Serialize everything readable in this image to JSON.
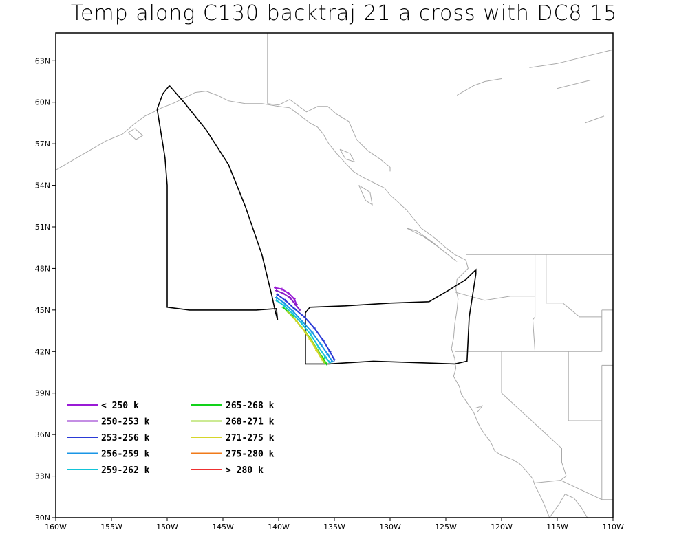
{
  "title": "Temp along C130 backtraj 21 a cross with DC8 15",
  "colors": {
    "frame": "#000000",
    "coast": "#aaaaaa",
    "flight_track": "#000000"
  },
  "chart_data": {
    "type": "map-trajectory",
    "xlim": [
      -160,
      -110
    ],
    "ylim": [
      30,
      65
    ],
    "x_ticks": [
      {
        "value": -160,
        "label": "160W"
      },
      {
        "value": -155,
        "label": "155W"
      },
      {
        "value": -150,
        "label": "150W"
      },
      {
        "value": -145,
        "label": "145W"
      },
      {
        "value": -140,
        "label": "140W"
      },
      {
        "value": -135,
        "label": "135W"
      },
      {
        "value": -130,
        "label": "130W"
      },
      {
        "value": -125,
        "label": "125W"
      },
      {
        "value": -120,
        "label": "120W"
      },
      {
        "value": -115,
        "label": "115W"
      },
      {
        "value": -110,
        "label": "110W"
      }
    ],
    "y_ticks": [
      {
        "value": 30,
        "label": "30N"
      },
      {
        "value": 33,
        "label": "33N"
      },
      {
        "value": 36,
        "label": "36N"
      },
      {
        "value": 39,
        "label": "39N"
      },
      {
        "value": 42,
        "label": "42N"
      },
      {
        "value": 45,
        "label": "45N"
      },
      {
        "value": 48,
        "label": "48N"
      },
      {
        "value": 51,
        "label": "51N"
      },
      {
        "value": 54,
        "label": "54N"
      },
      {
        "value": 57,
        "label": "57N"
      },
      {
        "value": 60,
        "label": "60N"
      },
      {
        "value": 63,
        "label": "63N"
      }
    ],
    "legend": [
      {
        "label": "< 250 k",
        "color": "#9a1ad6"
      },
      {
        "label": "250-253 k",
        "color": "#8a1ec8"
      },
      {
        "label": "253-256 k",
        "color": "#2a3ad6"
      },
      {
        "label": "256-259 k",
        "color": "#1a96e6"
      },
      {
        "label": "259-262 k",
        "color": "#12c4d8"
      },
      {
        "label": "265-268 k",
        "color": "#12d21a"
      },
      {
        "label": "268-271 k",
        "color": "#9ad62a"
      },
      {
        "label": "271-275 k",
        "color": "#d6d62a"
      },
      {
        "label": "275-280 k",
        "color": "#f07a1a"
      },
      {
        "label": "> 280 k",
        "color": "#ee3030"
      }
    ],
    "flight_track": [
      [
        -149.8,
        61.2
      ],
      [
        -150.4,
        60.6
      ],
      [
        -150.9,
        59.5
      ],
      [
        -150.6,
        58.0
      ],
      [
        -150.2,
        56.0
      ],
      [
        -150.0,
        54.0
      ],
      [
        -150.0,
        51.0
      ],
      [
        -150.0,
        48.0
      ],
      [
        -150.0,
        45.2
      ],
      [
        -148.0,
        45.0
      ],
      [
        -145.0,
        45.0
      ],
      [
        -142.0,
        45.0
      ],
      [
        -140.2,
        45.1
      ],
      [
        -140.1,
        44.3
      ],
      [
        -140.3,
        44.9
      ],
      [
        -140.6,
        46.0
      ],
      [
        -141.5,
        49.0
      ],
      [
        -143.0,
        52.5
      ],
      [
        -144.5,
        55.5
      ],
      [
        -146.5,
        58.0
      ],
      [
        -148.5,
        60.0
      ],
      [
        -149.8,
        61.2
      ]
    ],
    "flight_track_2": [
      [
        -137.6,
        44.8
      ],
      [
        -137.2,
        45.2
      ],
      [
        -134.0,
        45.3
      ],
      [
        -130.0,
        45.5
      ],
      [
        -126.5,
        45.6
      ],
      [
        -124.8,
        46.4
      ],
      [
        -123.2,
        47.2
      ],
      [
        -122.3,
        47.9
      ],
      [
        -122.3,
        47.6
      ],
      [
        -122.9,
        44.5
      ],
      [
        -123.1,
        41.3
      ],
      [
        -124.2,
        41.1
      ],
      [
        -131.5,
        41.3
      ],
      [
        -135.5,
        41.1
      ],
      [
        -137.6,
        41.1
      ],
      [
        -137.6,
        44.8
      ]
    ],
    "trajectories": [
      {
        "color": "#9a1ad6",
        "points": [
          [
            -140.3,
            46.6
          ],
          [
            -139.7,
            46.5
          ],
          [
            -139.1,
            46.2
          ],
          [
            -138.6,
            45.8
          ],
          [
            -138.4,
            45.4
          ]
        ]
      },
      {
        "color": "#8a1ec8",
        "points": [
          [
            -140.2,
            46.4
          ],
          [
            -139.6,
            46.2
          ],
          [
            -139.0,
            45.9
          ],
          [
            -138.5,
            45.4
          ],
          [
            -138.1,
            45.0
          ]
        ]
      },
      {
        "color": "#2a3ad6",
        "points": [
          [
            -140.1,
            46.1
          ],
          [
            -139.4,
            45.7
          ],
          [
            -138.6,
            45.1
          ],
          [
            -137.7,
            44.5
          ],
          [
            -136.8,
            43.7
          ],
          [
            -136.0,
            42.8
          ],
          [
            -135.4,
            42.0
          ],
          [
            -135.0,
            41.4
          ]
        ]
      },
      {
        "color": "#1a96e6",
        "points": [
          [
            -140.2,
            45.9
          ],
          [
            -139.5,
            45.5
          ],
          [
            -138.7,
            44.9
          ],
          [
            -137.9,
            44.2
          ],
          [
            -137.0,
            43.4
          ],
          [
            -136.2,
            42.5
          ],
          [
            -135.6,
            41.8
          ],
          [
            -135.2,
            41.3
          ]
        ]
      },
      {
        "color": "#12c4d8",
        "points": [
          [
            -140.2,
            45.7
          ],
          [
            -139.5,
            45.3
          ],
          [
            -138.7,
            44.7
          ],
          [
            -137.9,
            44.0
          ],
          [
            -137.1,
            43.2
          ],
          [
            -136.4,
            42.3
          ],
          [
            -135.8,
            41.6
          ],
          [
            -135.4,
            41.2
          ]
        ]
      },
      {
        "color": "#12d21a",
        "points": [
          [
            -139.6,
            45.2
          ],
          [
            -138.8,
            44.6
          ],
          [
            -138.0,
            43.8
          ],
          [
            -137.2,
            43.0
          ],
          [
            -136.5,
            42.1
          ],
          [
            -136.0,
            41.5
          ],
          [
            -135.7,
            41.1
          ]
        ]
      },
      {
        "color": "#9ad62a",
        "points": [
          [
            -139.2,
            44.9
          ],
          [
            -138.4,
            44.2
          ],
          [
            -137.6,
            43.4
          ],
          [
            -136.9,
            42.6
          ],
          [
            -136.3,
            41.8
          ],
          [
            -135.9,
            41.2
          ]
        ]
      },
      {
        "color": "#d6d62a",
        "points": [
          [
            -138.6,
            44.4
          ],
          [
            -137.9,
            43.7
          ],
          [
            -137.2,
            42.9
          ],
          [
            -136.6,
            42.1
          ],
          [
            -136.1,
            41.4
          ]
        ]
      }
    ],
    "coastlines": [
      [
        [
          -160,
          55.1
        ],
        [
          -158.5,
          55.8
        ],
        [
          -157,
          56.5
        ],
        [
          -155.5,
          57.2
        ],
        [
          -154,
          57.7
        ],
        [
          -153,
          58.4
        ],
        [
          -152,
          59.0
        ],
        [
          -151.2,
          59.3
        ],
        [
          -150.5,
          59.6
        ],
        [
          -149.5,
          59.9
        ],
        [
          -148.5,
          60.3
        ],
        [
          -147.5,
          60.7
        ],
        [
          -146.5,
          60.8
        ],
        [
          -145.5,
          60.5
        ],
        [
          -144.5,
          60.1
        ],
        [
          -143,
          59.9
        ],
        [
          -141.5,
          59.9
        ],
        [
          -140,
          59.7
        ],
        [
          -139,
          59.6
        ],
        [
          -138,
          59.0
        ],
        [
          -137.2,
          58.5
        ],
        [
          -136.5,
          58.2
        ],
        [
          -136,
          57.7
        ],
        [
          -135.5,
          57.0
        ],
        [
          -134.8,
          56.3
        ],
        [
          -134,
          55.6
        ],
        [
          -133.3,
          55.0
        ],
        [
          -132.5,
          54.6
        ],
        [
          -131.5,
          54.2
        ],
        [
          -130.5,
          53.8
        ],
        [
          -130.0,
          53.3
        ],
        [
          -129.3,
          52.8
        ],
        [
          -128.5,
          52.2
        ],
        [
          -127.8,
          51.5
        ],
        [
          -127.2,
          50.9
        ],
        [
          -126.0,
          50.2
        ],
        [
          -125.0,
          49.5
        ],
        [
          -124.2,
          49.0
        ],
        [
          -123.2,
          48.6
        ],
        [
          -123.0,
          48.0
        ],
        [
          -123.5,
          47.6
        ],
        [
          -124.0,
          47.2
        ],
        [
          -124.1,
          46.5
        ],
        [
          -123.9,
          45.8
        ],
        [
          -124.0,
          45.0
        ],
        [
          -124.2,
          44.0
        ],
        [
          -124.3,
          43.0
        ],
        [
          -124.5,
          42.2
        ],
        [
          -124.2,
          41.5
        ],
        [
          -124.1,
          40.8
        ],
        [
          -124.3,
          40.2
        ],
        [
          -123.8,
          39.5
        ],
        [
          -123.6,
          38.9
        ],
        [
          -123.0,
          38.2
        ],
        [
          -122.5,
          37.6
        ],
        [
          -122.2,
          37.0
        ],
        [
          -121.9,
          36.5
        ],
        [
          -121.5,
          36.0
        ],
        [
          -121.0,
          35.5
        ],
        [
          -120.6,
          34.8
        ],
        [
          -120.0,
          34.5
        ],
        [
          -119.0,
          34.2
        ],
        [
          -118.4,
          33.9
        ],
        [
          -117.8,
          33.4
        ],
        [
          -117.2,
          32.8
        ],
        [
          -117.0,
          32.3
        ],
        [
          -116.6,
          31.7
        ],
        [
          -116.2,
          31.0
        ],
        [
          -115.9,
          30.4
        ],
        [
          -115.7,
          30.0
        ]
      ],
      [
        [
          -153.5,
          57.8
        ],
        [
          -152.8,
          57.3
        ],
        [
          -152.2,
          57.6
        ],
        [
          -152.9,
          58.1
        ],
        [
          -153.5,
          57.8
        ]
      ],
      [
        [
          -134.5,
          56.6
        ],
        [
          -133.6,
          56.3
        ],
        [
          -133.2,
          55.7
        ],
        [
          -134.0,
          55.9
        ],
        [
          -134.5,
          56.6
        ]
      ],
      [
        [
          -132.8,
          54.0
        ],
        [
          -131.8,
          53.5
        ],
        [
          -131.6,
          52.6
        ],
        [
          -132.2,
          52.9
        ],
        [
          -132.8,
          54.0
        ]
      ],
      [
        [
          -128.5,
          50.9
        ],
        [
          -127.0,
          50.3
        ],
        [
          -125.6,
          49.5
        ],
        [
          -124.0,
          48.5
        ],
        [
          -124.5,
          48.8
        ],
        [
          -126.2,
          49.9
        ],
        [
          -127.6,
          50.7
        ],
        [
          -128.5,
          50.9
        ]
      ],
      [
        [
          -115.7,
          30.0
        ],
        [
          -114.9,
          30.9
        ],
        [
          -114.3,
          31.7
        ],
        [
          -113.5,
          31.4
        ],
        [
          -112.9,
          30.8
        ],
        [
          -112.3,
          30.0
        ]
      ],
      [
        [
          -122.4,
          37.9
        ],
        [
          -122.0,
          38.0
        ],
        [
          -121.7,
          38.1
        ],
        [
          -122.2,
          37.6
        ]
      ],
      [
        [
          -124.0,
          60.5
        ],
        [
          -122.5,
          61.2
        ],
        [
          -121.5,
          61.5
        ],
        [
          -120.0,
          61.7
        ]
      ],
      [
        [
          -117.5,
          62.5
        ],
        [
          -115.0,
          62.8
        ],
        [
          -113.0,
          63.2
        ],
        [
          -111.5,
          63.5
        ],
        [
          -110.0,
          63.8
        ]
      ],
      [
        [
          -115.0,
          61.0
        ],
        [
          -113.5,
          61.3
        ],
        [
          -112.0,
          61.6
        ]
      ],
      [
        [
          -112.5,
          58.5
        ],
        [
          -111.5,
          58.8
        ],
        [
          -110.8,
          59.0
        ]
      ]
    ],
    "borders": [
      [
        [
          -141,
          65
        ],
        [
          -141,
          59.9
        ]
      ],
      [
        [
          -141,
          59.9
        ],
        [
          -140,
          59.8
        ],
        [
          -139,
          60.2
        ],
        [
          -137.5,
          59.3
        ],
        [
          -136.5,
          59.7
        ],
        [
          -135.6,
          59.7
        ],
        [
          -134.9,
          59.2
        ],
        [
          -133.7,
          58.6
        ],
        [
          -133,
          57.3
        ],
        [
          -132,
          56.5
        ],
        [
          -130.9,
          55.9
        ],
        [
          -130.0,
          55.3
        ],
        [
          -130.0,
          55.0
        ]
      ],
      [
        [
          -123.2,
          49.0
        ],
        [
          -110,
          49.0
        ]
      ],
      [
        [
          -124.2,
          46.3
        ],
        [
          -121.5,
          45.7
        ],
        [
          -119.2,
          46.0
        ],
        [
          -117.0,
          46.0
        ]
      ],
      [
        [
          -117.0,
          49.0
        ],
        [
          -117.0,
          44.5
        ],
        [
          -117.2,
          44.3
        ],
        [
          -117.0,
          42.0
        ]
      ],
      [
        [
          -124.2,
          42.0
        ],
        [
          -111.0,
          42.0
        ]
      ],
      [
        [
          -120.0,
          42.0
        ],
        [
          -120.0,
          39.0
        ],
        [
          -114.6,
          35.0
        ],
        [
          -114.6,
          34.0
        ],
        [
          -114.2,
          33.0
        ],
        [
          -114.7,
          32.7
        ],
        [
          -111.0,
          31.3
        ],
        [
          -108.2,
          31.3
        ]
      ],
      [
        [
          -117.1,
          32.5
        ],
        [
          -114.7,
          32.7
        ]
      ],
      [
        [
          -111.0,
          42.0
        ],
        [
          -111.0,
          45.0
        ]
      ],
      [
        [
          -114.0,
          42.0
        ],
        [
          -114.0,
          37.0
        ]
      ],
      [
        [
          -111.0,
          37.0
        ],
        [
          -114.0,
          37.0
        ]
      ],
      [
        [
          -111.0,
          41.0
        ],
        [
          -111.0,
          31.3
        ]
      ],
      [
        [
          -116.0,
          49.0
        ],
        [
          -116.0,
          45.5
        ],
        [
          -114.5,
          45.5
        ],
        [
          -113.0,
          44.5
        ],
        [
          -111.0,
          44.5
        ]
      ],
      [
        [
          -110,
          45.0
        ],
        [
          -111.0,
          45.0
        ]
      ],
      [
        [
          -110,
          41.0
        ],
        [
          -111.0,
          41.0
        ]
      ]
    ]
  }
}
